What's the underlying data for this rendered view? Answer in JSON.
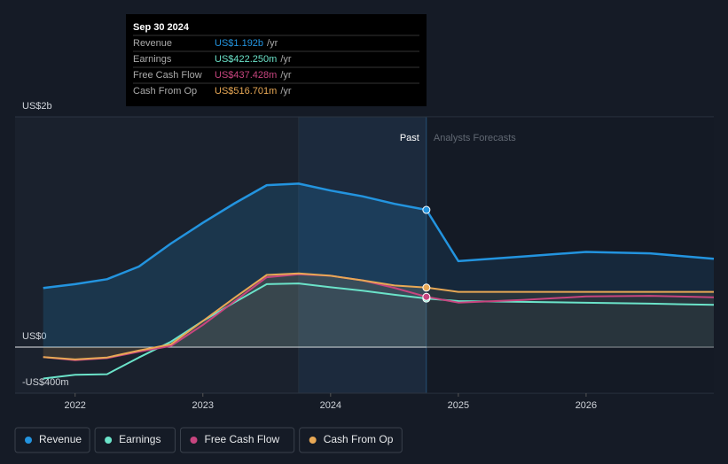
{
  "chart_data": {
    "type": "line",
    "x": [
      2021.75,
      2022.0,
      2022.25,
      2022.5,
      2022.75,
      2023.0,
      2023.25,
      2023.5,
      2023.75,
      2024.0,
      2024.25,
      2024.5,
      2024.75,
      2025.0,
      2025.5,
      2026.0,
      2026.5,
      2027.0
    ],
    "series": [
      {
        "name": "Revenue",
        "color": "#2394df",
        "values": [
          513,
          547,
          590,
          700,
          900,
          1080,
          1250,
          1407,
          1420,
          1360,
          1310,
          1245,
          1192,
          747,
          787,
          827,
          815,
          767
        ]
      },
      {
        "name": "Earnings",
        "color": "#6be3c9",
        "values": [
          -273,
          -240,
          -235,
          -90,
          47,
          227,
          390,
          547,
          553,
          520,
          490,
          455,
          422,
          400,
          393,
          385,
          378,
          367
        ]
      },
      {
        "name": "Free Cash Flow",
        "color": "#c7457f",
        "values": [
          -87,
          -113,
          -95,
          -40,
          10,
          193,
          400,
          607,
          633,
          620,
          580,
          515,
          437,
          387,
          410,
          440,
          445,
          433
        ]
      },
      {
        "name": "Cash From Op",
        "color": "#e8a855",
        "values": [
          -87,
          -107,
          -90,
          -30,
          25,
          227,
          430,
          627,
          640,
          620,
          580,
          535,
          517,
          480,
          480,
          480,
          480,
          480
        ]
      }
    ],
    "xlim": [
      2021.53,
      2027.0
    ],
    "xticks": [
      2022,
      2023,
      2024,
      2025,
      2026
    ],
    "ylim": [
      -400,
      2000
    ],
    "yticks": [
      {
        "value": -400,
        "label": "-US$400m"
      },
      {
        "value": 0,
        "label": "US$0"
      },
      {
        "value": 2000,
        "label": "US$2b"
      }
    ],
    "highlight_start": 2023.75,
    "forecast_start": 2024.75,
    "past_label": "Past",
    "forecast_label": "Analysts Forecasts",
    "tooltip": {
      "date": "Sep 30 2024",
      "rows": [
        {
          "name": "Revenue",
          "value": "US$1.192b",
          "unit": "/yr"
        },
        {
          "name": "Earnings",
          "value": "US$422.250m",
          "unit": "/yr"
        },
        {
          "name": "Free Cash Flow",
          "value": "US$437.428m",
          "unit": "/yr"
        },
        {
          "name": "Cash From Op",
          "value": "US$516.701m",
          "unit": "/yr"
        }
      ]
    }
  }
}
